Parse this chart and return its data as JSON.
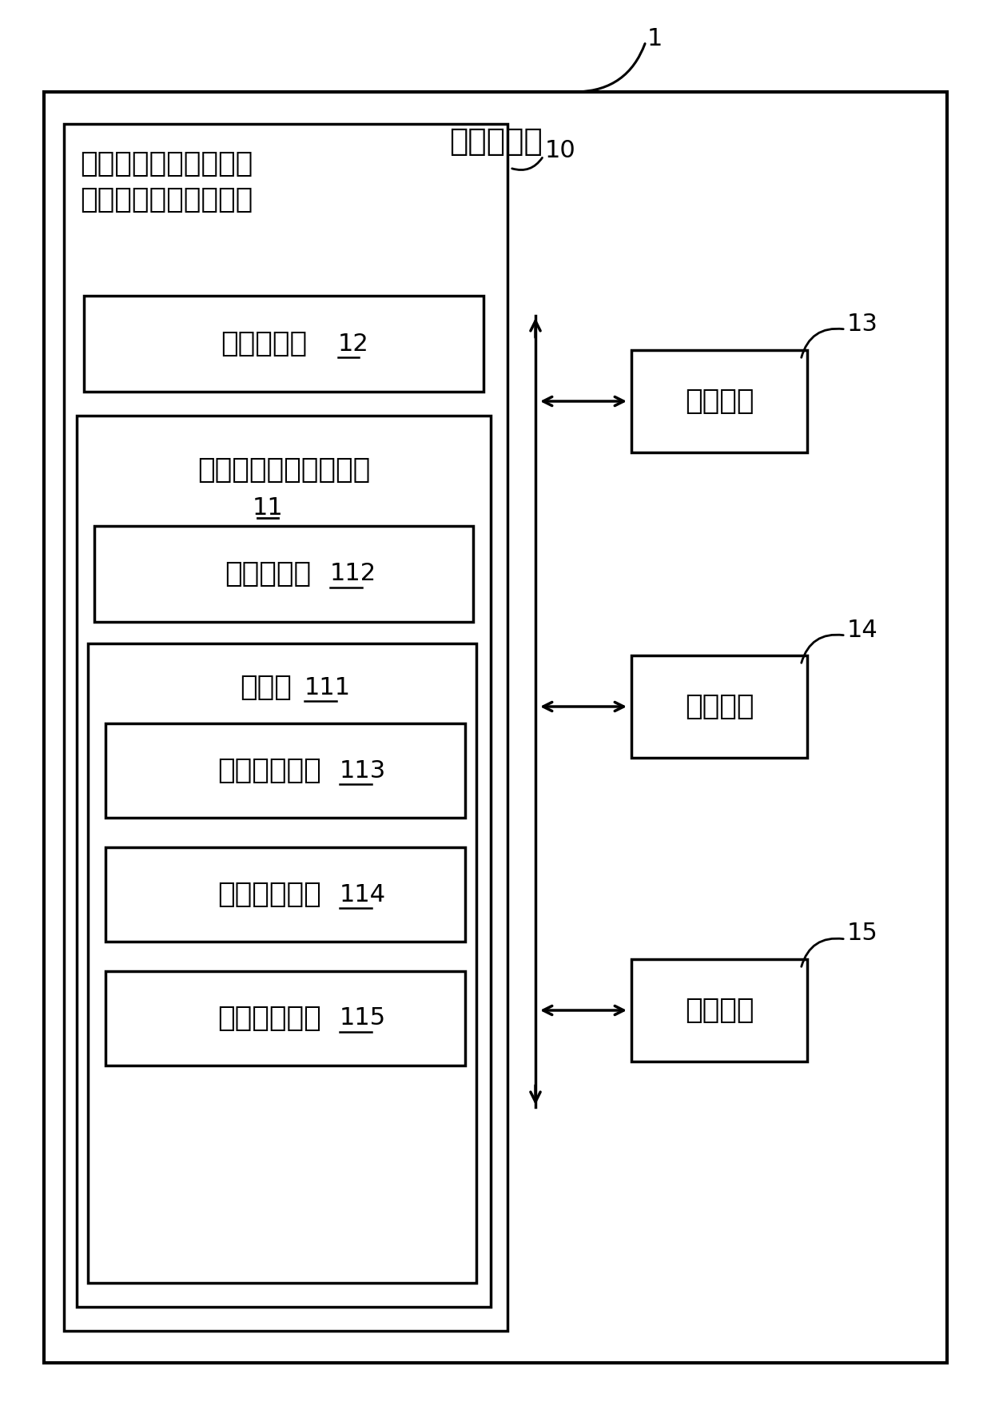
{
  "bg_color": "#ffffff",
  "title_hospital": "医院服务器",
  "label_1": "1",
  "label_10": "10",
  "label_12": "12",
  "label_11": "11",
  "label_112": "112",
  "label_111": "111",
  "label_113": "113",
  "label_114": "114",
  "label_115": "115",
  "label_13": "13",
  "label_14": "14",
  "label_15": "15",
  "text_system_line1": "基于既往诊疗数据的可",
  "text_system_line2": "视化临床数据中心系统",
  "text_db": "临床数据库",
  "text_ui_line1": "临床数据中心用户界面",
  "text_sub": "各级子界面",
  "text_main": "主界面",
  "text_data": "数据维度区域",
  "text_topic": "专项主题区域",
  "text_medical": "医疗档案区域",
  "text_comm": "通信单元",
  "text_storage": "存储单元",
  "text_process": "处理单元",
  "font_size_main": 21,
  "font_size_num": 19
}
